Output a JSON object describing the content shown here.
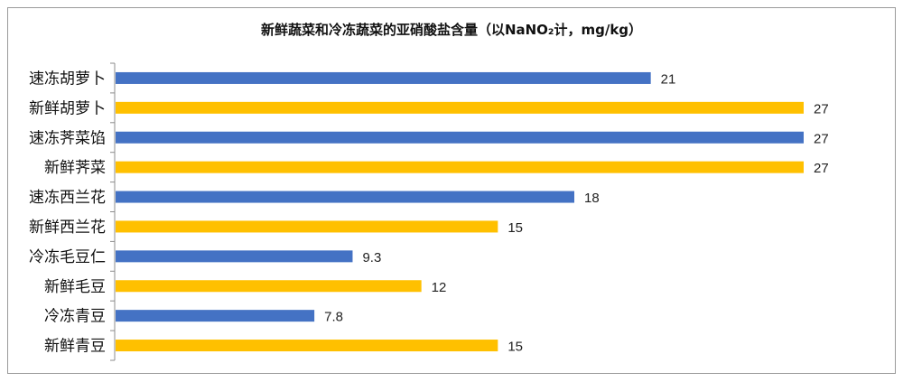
{
  "chart_data": {
    "type": "bar",
    "orientation": "horizontal",
    "title": "新鲜蔬菜和冷冻蔬菜的亚硝酸盐含量（以NaNO₂计，mg/kg）",
    "categories": [
      "速冻胡萝卜",
      "新鲜胡萝卜",
      "速冻荠菜馅",
      "新鲜荠菜",
      "速冻西兰花",
      "新鲜西兰花",
      "冷冻毛豆仁",
      "新鲜毛豆",
      "冷冻青豆",
      "新鲜青豆"
    ],
    "values": [
      21,
      27,
      27,
      27,
      18,
      15,
      9.3,
      12,
      7.8,
      15
    ],
    "value_labels": [
      "21",
      "27",
      "27",
      "27",
      "18",
      "15",
      "9.3",
      "12",
      "7.8",
      "15"
    ],
    "bar_colors": [
      "#4472C4",
      "#FFC000",
      "#4472C4",
      "#FFC000",
      "#4472C4",
      "#FFC000",
      "#4472C4",
      "#FFC000",
      "#4472C4",
      "#FFC000"
    ],
    "xlim": [
      0,
      28
    ],
    "xlabel": "",
    "ylabel": "",
    "grid": false,
    "legend": "none"
  }
}
